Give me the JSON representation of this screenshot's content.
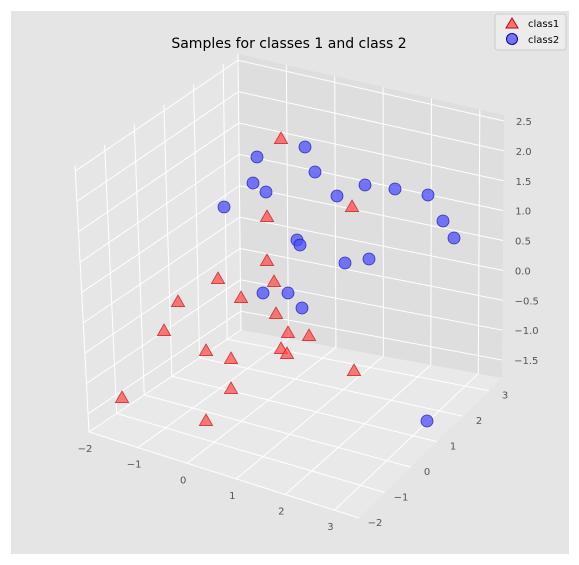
{
  "chart_data": {
    "type": "scatter",
    "projection": "3d",
    "title": "Samples for classes 1 and class 2",
    "xlabel": "",
    "ylabel": "",
    "zlabel": "",
    "grid": true,
    "legend_position": "top-right",
    "xlim": [
      -2,
      3.5
    ],
    "ylim": [
      -2,
      3.5
    ],
    "zlim": [
      -1.8,
      2.6
    ],
    "x_ticks": [
      -2,
      -1,
      0,
      1,
      2,
      3
    ],
    "y_ticks": [
      -2,
      -1,
      0,
      1,
      2,
      3
    ],
    "z_ticks": [
      -1.5,
      -1.0,
      -0.5,
      0.0,
      0.5,
      1.0,
      1.5,
      2.0,
      2.5
    ],
    "x_tick_labels": [
      "−2",
      "−1",
      "0",
      "1",
      "2",
      "3"
    ],
    "y_tick_labels": [
      "−2",
      "−1",
      "0",
      "1",
      "2",
      "3"
    ],
    "z_tick_labels": [
      "−1.5",
      "−1.0",
      "−0.5",
      "0.0",
      "0.5",
      "1.0",
      "1.5",
      "2.0",
      "2.5"
    ],
    "series": [
      {
        "name": "class1",
        "marker": "triangle",
        "color": "#ff4d4d",
        "edge_color": "#c00000",
        "points": [
          [
            281,
            139
          ],
          [
            352,
            207
          ],
          [
            267,
            217
          ],
          [
            267,
            261
          ],
          [
            218,
            279
          ],
          [
            274,
            282
          ],
          [
            178,
            302
          ],
          [
            241,
            298
          ],
          [
            276,
            314
          ],
          [
            164,
            331
          ],
          [
            288,
            333
          ],
          [
            309,
            336
          ],
          [
            206,
            351
          ],
          [
            281,
            349
          ],
          [
            287,
            354
          ],
          [
            231,
            359
          ],
          [
            354,
            371
          ],
          [
            231,
            389
          ],
          [
            122,
            398
          ],
          [
            206,
            421
          ]
        ]
      },
      {
        "name": "class2",
        "marker": "circle",
        "color": "#4d4dff",
        "edge_color": "#0000a0",
        "points": [
          [
            305,
            147
          ],
          [
            257,
            157
          ],
          [
            315,
            172
          ],
          [
            253,
            183
          ],
          [
            266,
            192
          ],
          [
            365,
            185
          ],
          [
            395,
            189
          ],
          [
            337,
            196
          ],
          [
            428,
            195
          ],
          [
            224,
            207
          ],
          [
            443,
            221
          ],
          [
            454,
            238
          ],
          [
            297,
            240
          ],
          [
            300,
            245
          ],
          [
            369,
            259
          ],
          [
            345,
            263
          ],
          [
            263,
            293
          ],
          [
            288,
            293
          ],
          [
            302,
            308
          ],
          [
            427,
            421
          ]
        ]
      }
    ]
  },
  "legend": {
    "items": [
      {
        "label": "class1",
        "marker": "triangle",
        "color": "#ff4d4d"
      },
      {
        "label": "class2",
        "marker": "circle",
        "color": "#4d4dff"
      }
    ]
  },
  "colors": {
    "figure_background": "#e5e5e5",
    "pane_left": "#e6e6e6",
    "pane_right": "#dedede",
    "pane_floor": "#e9e9e9",
    "grid": "#ffffff"
  }
}
